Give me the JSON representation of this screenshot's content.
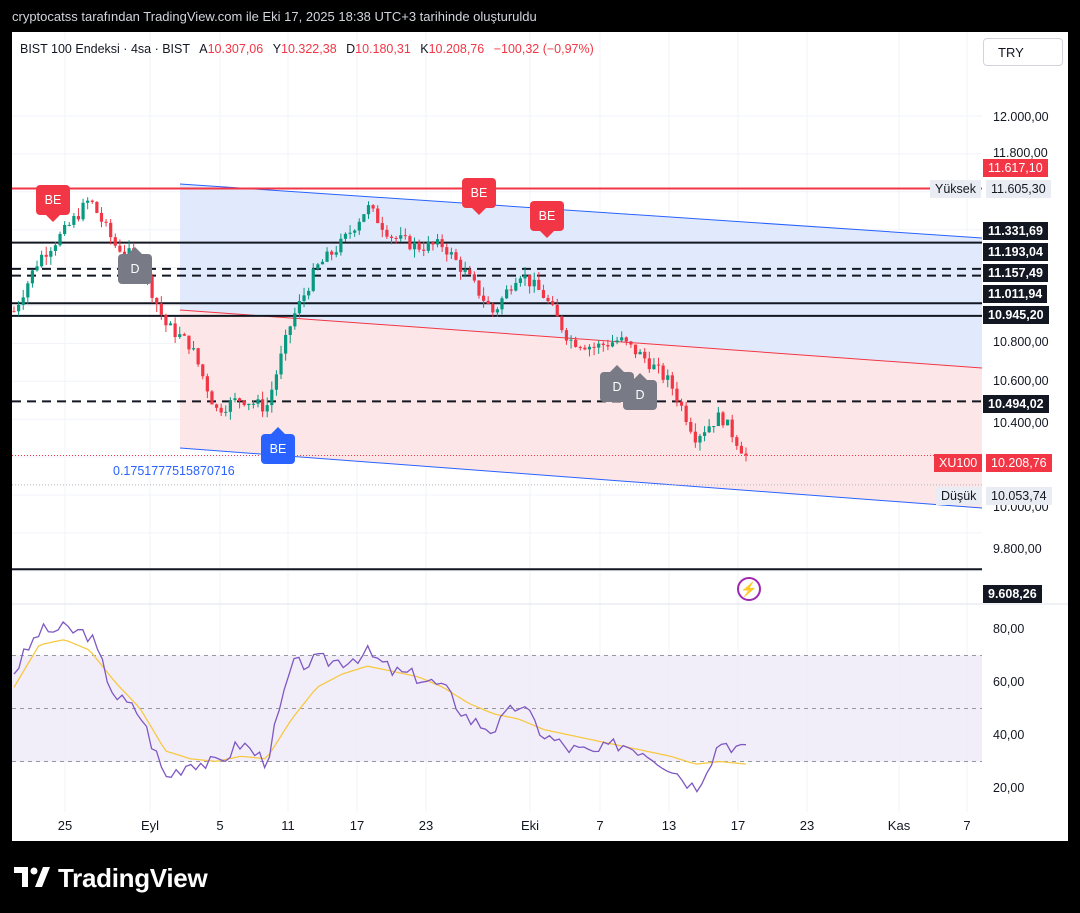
{
  "attribution": "cryptocatss tarafından TradingView.com ile Eki 17, 2025 18:38 UTC+3 tarihinde oluşturuldu",
  "brand": "TradingView",
  "header": {
    "symbol": "BIST 100 Endeksi · 4sa · BIST",
    "open_label": "A",
    "open": "10.307,06",
    "high_label": "Y",
    "high": "10.322,38",
    "low_label": "D",
    "low": "10.180,31",
    "close_label": "K",
    "close": "10.208,76",
    "change": "−100,32 (−0,97%)"
  },
  "currency": "TRY",
  "price_axis": {
    "ticks": [
      {
        "label": "12.000,00",
        "value": 12000
      },
      {
        "label": "11.800,00",
        "value": 11800
      },
      {
        "label": "10.800,00",
        "value": 10800
      },
      {
        "label": "10.600,00",
        "value": 10600
      },
      {
        "label": "10.400,00",
        "value": 10400
      },
      {
        "label": "10.000,00",
        "value": 10000
      },
      {
        "label": "9.800,00",
        "value": 9800
      }
    ]
  },
  "rsi_axis": {
    "ticks": [
      {
        "label": "80,00",
        "value": 80
      },
      {
        "label": "60,00",
        "value": 60
      },
      {
        "label": "40,00",
        "value": 40
      },
      {
        "label": "20,00",
        "value": 20
      }
    ]
  },
  "time_axis": [
    "25",
    "Eyl",
    "5",
    "11",
    "17",
    "23",
    "Eki",
    "7",
    "13",
    "17",
    "23",
    "Kas",
    "7"
  ],
  "levels": [
    {
      "label": "11.617,10",
      "value": 11617.1,
      "kind": "red"
    },
    {
      "label": "11.331,69",
      "value": 11331.69,
      "kind": "solid"
    },
    {
      "label": "11.193,04",
      "value": 11193.04,
      "kind": "dashed"
    },
    {
      "label": "11.157,49",
      "value": 11157.49,
      "kind": "dashed"
    },
    {
      "label": "11.011,94",
      "value": 11011.94,
      "kind": "solid"
    },
    {
      "label": "10.945,20",
      "value": 10945.2,
      "kind": "solid"
    },
    {
      "label": "10.494,02",
      "value": 10494.02,
      "kind": "dashed"
    },
    {
      "label": "9.608,26",
      "value": 9608.26,
      "kind": "solid"
    }
  ],
  "high_marker": {
    "name": "Yüksek",
    "label": "11.605,30",
    "value": 11605.3
  },
  "low_marker": {
    "name": "Düşük",
    "label": "10.053,74",
    "value": 10053.74
  },
  "last_price": {
    "name": "XU100",
    "label": "10.208,76",
    "value": 10208.76
  },
  "fib_ratio": "0.1751777515870716",
  "signals": [
    {
      "label": "BE",
      "style": "red-down"
    },
    {
      "label": "D",
      "style": "gray-up"
    },
    {
      "label": "BE",
      "style": "blue-up"
    },
    {
      "label": "BE",
      "style": "red-down"
    },
    {
      "label": "BE",
      "style": "red-down"
    },
    {
      "label": "D",
      "style": "gray-up"
    },
    {
      "label": "D",
      "style": "gray-up"
    }
  ],
  "colors": {
    "bull": "#089981",
    "bear": "#f23645",
    "channel_blue": "#2962ff",
    "channel_red": "#f23645",
    "rsi": "#7e57c2",
    "rsi_ma": "#f7c843",
    "blue_zone": "#dbe6fb",
    "red_zone": "#fde3e4",
    "rsi_band": "#ede7f6"
  },
  "chart_data": {
    "type": "candlestick",
    "timeframe": "4sa",
    "x": [
      "Ağu 21",
      "Ağu 25",
      "Ağu 26",
      "Ağu 28",
      "Eyl 1",
      "Eyl 2",
      "Eyl 3",
      "Eyl 5",
      "Eyl 8",
      "Eyl 11",
      "Eyl 12",
      "Eyl 15",
      "Eyl 17",
      "Eyl 19",
      "Eyl 22",
      "Eyl 23",
      "Eyl 25",
      "Eyl 26",
      "Eyl 29",
      "Eki 1",
      "Eki 3",
      "Eki 6",
      "Eki 7",
      "Eki 9",
      "Eki 10",
      "Eki 13",
      "Eki 14",
      "Eki 15",
      "Eki 16",
      "Eki 17"
    ],
    "close": [
      10970,
      11250,
      11390,
      11560,
      11320,
      11230,
      10900,
      10790,
      10450,
      10510,
      10460,
      10920,
      11200,
      11330,
      11520,
      11360,
      11310,
      11320,
      11150,
      10960,
      11180,
      11050,
      10820,
      10780,
      10820,
      10720,
      10590,
      10310,
      10420,
      10208.76
    ],
    "rsi": [
      64,
      79,
      80,
      78,
      55,
      48,
      24,
      30,
      29,
      37,
      30,
      66,
      68,
      68,
      71,
      64,
      62,
      58,
      46,
      42,
      52,
      40,
      35,
      33,
      37,
      34,
      28,
      20,
      38,
      34
    ],
    "rsi_ma": [
      58,
      74,
      76,
      72,
      60,
      50,
      34,
      31,
      30,
      32,
      31,
      46,
      58,
      63,
      66,
      64,
      62,
      58,
      52,
      48,
      46,
      42,
      40,
      38,
      36,
      34,
      32,
      29,
      30,
      29
    ],
    "ylim": [
      9480,
      12200
    ],
    "rsi_ylim": [
      12,
      86
    ],
    "rsi_levels": [
      70,
      50,
      30
    ]
  }
}
